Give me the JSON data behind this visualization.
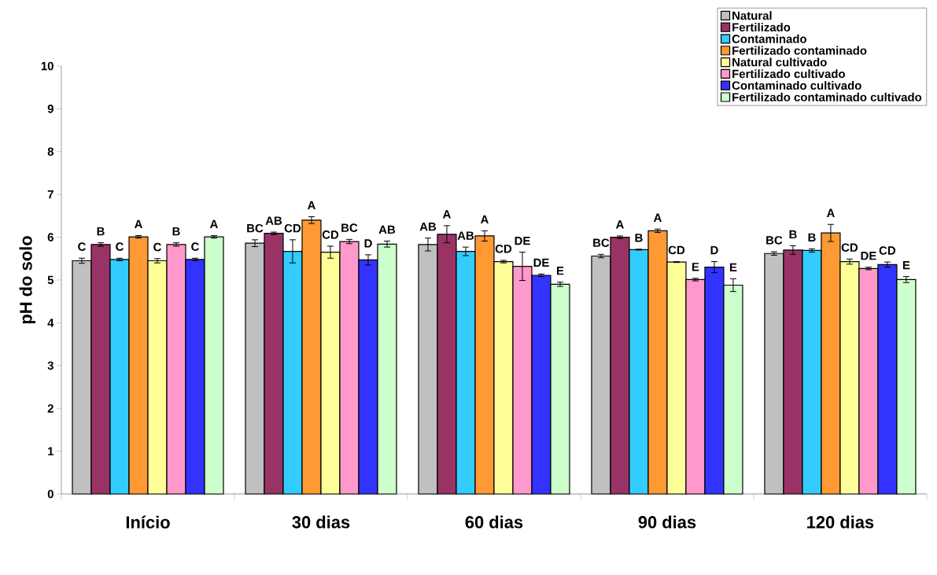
{
  "chart_data": {
    "type": "bar",
    "ylabel": "pH do solo",
    "categories": [
      "Início",
      "30 dias",
      "60 dias",
      "90 dias",
      "120 dias"
    ],
    "ylim": [
      0,
      10
    ],
    "yticks": [
      0,
      1,
      2,
      3,
      4,
      5,
      6,
      7,
      8,
      9,
      10
    ],
    "grid": false,
    "legend": "top right",
    "series": [
      {
        "name": "Natural",
        "color": "#c0c0c0",
        "values": [
          5.45,
          5.86,
          5.83,
          5.56,
          5.62
        ],
        "errors": [
          0.06,
          0.08,
          0.15,
          0.04,
          0.04
        ],
        "value_labels": [
          "C",
          "BC",
          "AB",
          "BC",
          "BC"
        ]
      },
      {
        "name": "Fertilizado",
        "color": "#993366",
        "values": [
          5.83,
          6.09,
          6.07,
          6.0,
          5.7
        ],
        "errors": [
          0.04,
          0.03,
          0.2,
          0.03,
          0.1
        ],
        "value_labels": [
          "B",
          "AB",
          "A",
          "A",
          "B"
        ]
      },
      {
        "name": "Contaminado",
        "color": "#33ccff",
        "values": [
          5.48,
          5.67,
          5.67,
          5.71,
          5.69
        ],
        "errors": [
          0.03,
          0.27,
          0.1,
          0.01,
          0.04
        ],
        "value_labels": [
          "C",
          "CD",
          "AB",
          "B",
          "B"
        ]
      },
      {
        "name": "Fertilizado contaminado",
        "color": "#ff9933",
        "values": [
          6.01,
          6.4,
          6.03,
          6.15,
          6.1
        ],
        "errors": [
          0.03,
          0.08,
          0.12,
          0.04,
          0.2
        ],
        "value_labels": [
          "A",
          "A",
          "A",
          "A",
          "A"
        ]
      },
      {
        "name": "Natural cultivado",
        "color": "#ffff99",
        "values": [
          5.45,
          5.65,
          5.43,
          5.42,
          5.43
        ],
        "errors": [
          0.05,
          0.14,
          0.03,
          0.01,
          0.06
        ],
        "value_labels": [
          "C",
          "CD",
          "CD",
          "CD",
          "CD"
        ]
      },
      {
        "name": "Fertilizado cultivado",
        "color": "#ff99cc",
        "values": [
          5.83,
          5.9,
          5.32,
          5.01,
          5.27
        ],
        "errors": [
          0.04,
          0.05,
          0.33,
          0.03,
          0.03
        ],
        "value_labels": [
          "B",
          "BC",
          "DE",
          "E",
          "DE"
        ]
      },
      {
        "name": "Contaminado cultivado",
        "color": "#3333ff",
        "values": [
          5.48,
          5.47,
          5.11,
          5.3,
          5.36
        ],
        "errors": [
          0.03,
          0.12,
          0.03,
          0.13,
          0.06
        ],
        "value_labels": [
          "C",
          "D",
          "DE",
          "D",
          "CD"
        ]
      },
      {
        "name": "Fertilizado contaminado cultivado",
        "color": "#ccffcc",
        "values": [
          6.01,
          5.84,
          4.9,
          4.88,
          5.01
        ],
        "errors": [
          0.03,
          0.07,
          0.05,
          0.15,
          0.07
        ],
        "value_labels": [
          "A",
          "AB",
          "E",
          "E",
          "E"
        ]
      }
    ]
  }
}
